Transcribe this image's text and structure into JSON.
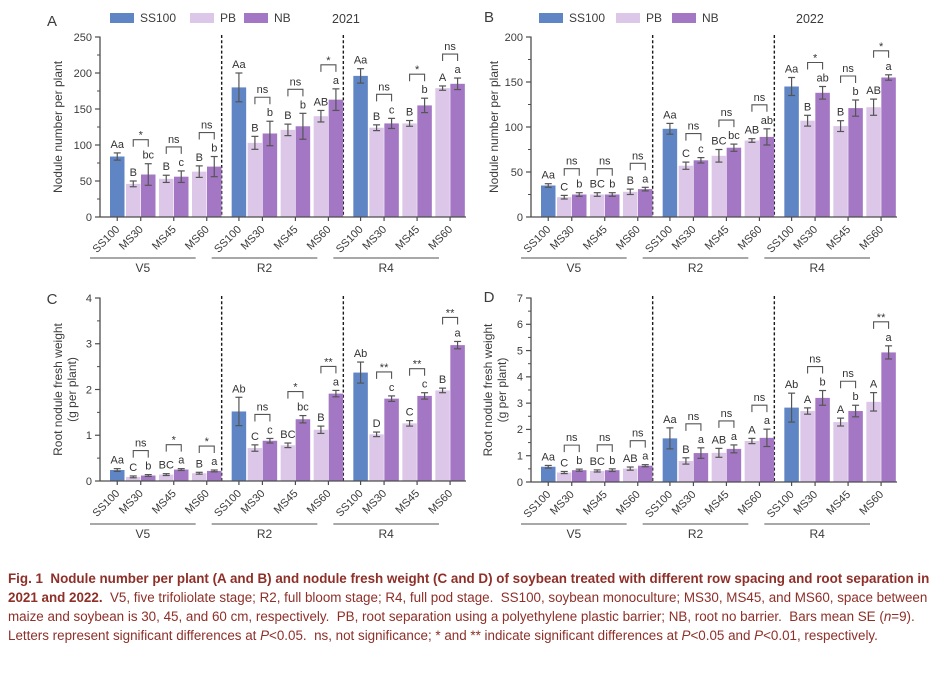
{
  "colors": {
    "ss100": "#5f85c5",
    "pb": "#dcc7e8",
    "nb": "#a377c3",
    "axis": "#4d4d4d",
    "error_bar": "#555555",
    "letter": "#333333",
    "text": "#3c3c3c",
    "group_line": "#8c8c8c",
    "separator": "#1a1a1a",
    "caption": "#8e2f28"
  },
  "legend": {
    "items": [
      {
        "label": "SS100",
        "color_key": "ss100"
      },
      {
        "label": "PB",
        "color_key": "pb"
      },
      {
        "label": "NB",
        "color_key": "nb"
      }
    ]
  },
  "chart_data": [
    {
      "type": "bar",
      "panel": "A",
      "panel_label": "A",
      "year": "2021",
      "ylabel": [
        "Nodule number per plant"
      ],
      "ylim": [
        0,
        250
      ],
      "ytick_step": 50,
      "yminor_step": 25,
      "x_categories": [
        "SS100",
        "MS30",
        "MS45",
        "MS60"
      ],
      "series_names": [
        "SS100",
        "PB",
        "NB"
      ],
      "show_legend": true,
      "groups": [
        {
          "name": "V5",
          "ss100": {
            "value": 84,
            "err": 5,
            "letter": "Aa"
          },
          "pairs": [
            {
              "cat": "MS30",
              "pb": {
                "value": 46,
                "err": 4,
                "letter": "B"
              },
              "nb": {
                "value": 59,
                "err": 15,
                "letter": "bc"
              },
              "sig": "*"
            },
            {
              "cat": "MS45",
              "pb": {
                "value": 53,
                "err": 5,
                "letter": "B"
              },
              "nb": {
                "value": 56,
                "err": 8,
                "letter": "c"
              },
              "sig": "ns"
            },
            {
              "cat": "MS60",
              "pb": {
                "value": 63,
                "err": 8,
                "letter": "B"
              },
              "nb": {
                "value": 70,
                "err": 14,
                "letter": "b"
              },
              "sig": "ns"
            }
          ]
        },
        {
          "name": "R2",
          "ss100": {
            "value": 180,
            "err": 20,
            "letter": "Aa"
          },
          "pairs": [
            {
              "cat": "MS30",
              "pb": {
                "value": 103,
                "err": 9,
                "letter": "B"
              },
              "nb": {
                "value": 116,
                "err": 17,
                "letter": "b"
              },
              "sig": "ns"
            },
            {
              "cat": "MS45",
              "pb": {
                "value": 121,
                "err": 8,
                "letter": "B"
              },
              "nb": {
                "value": 126,
                "err": 18,
                "letter": "b"
              },
              "sig": "ns"
            },
            {
              "cat": "MS60",
              "pb": {
                "value": 140,
                "err": 8,
                "letter": "AB"
              },
              "nb": {
                "value": 163,
                "err": 15,
                "letter": "a"
              },
              "sig": "*"
            }
          ]
        },
        {
          "name": "R4",
          "ss100": {
            "value": 196,
            "err": 10,
            "letter": "Aa"
          },
          "pairs": [
            {
              "cat": "MS30",
              "pb": {
                "value": 124,
                "err": 4,
                "letter": "B"
              },
              "nb": {
                "value": 130,
                "err": 7,
                "letter": "c"
              },
              "sig": "ns"
            },
            {
              "cat": "MS45",
              "pb": {
                "value": 130,
                "err": 4,
                "letter": "B"
              },
              "nb": {
                "value": 155,
                "err": 10,
                "letter": "b"
              },
              "sig": "*"
            },
            {
              "cat": "MS60",
              "pb": {
                "value": 179,
                "err": 3,
                "letter": "A"
              },
              "nb": {
                "value": 185,
                "err": 8,
                "letter": "a"
              },
              "sig": "ns"
            }
          ]
        }
      ]
    },
    {
      "type": "bar",
      "panel": "B",
      "panel_label": "B",
      "year": "2022",
      "ylabel": [
        "Nodule number per plant"
      ],
      "ylim": [
        0,
        200
      ],
      "ytick_step": 50,
      "yminor_step": 25,
      "x_categories": [
        "SS100",
        "MS30",
        "MS45",
        "MS60"
      ],
      "series_names": [
        "SS100",
        "PB",
        "NB"
      ],
      "show_legend": true,
      "groups": [
        {
          "name": "V5",
          "ss100": {
            "value": 35,
            "err": 2,
            "letter": "Aa"
          },
          "pairs": [
            {
              "cat": "MS30",
              "pb": {
                "value": 22,
                "err": 2,
                "letter": "C"
              },
              "nb": {
                "value": 25,
                "err": 2,
                "letter": "b"
              },
              "sig": "ns"
            },
            {
              "cat": "MS45",
              "pb": {
                "value": 25,
                "err": 2,
                "letter": "BC"
              },
              "nb": {
                "value": 25,
                "err": 2,
                "letter": "b"
              },
              "sig": "ns"
            },
            {
              "cat": "MS60",
              "pb": {
                "value": 28,
                "err": 3,
                "letter": "B"
              },
              "nb": {
                "value": 31,
                "err": 2,
                "letter": "a"
              },
              "sig": "ns"
            }
          ]
        },
        {
          "name": "R2",
          "ss100": {
            "value": 98,
            "err": 6,
            "letter": "Aa"
          },
          "pairs": [
            {
              "cat": "MS30",
              "pb": {
                "value": 57,
                "err": 4,
                "letter": "C"
              },
              "nb": {
                "value": 63,
                "err": 3,
                "letter": "c"
              },
              "sig": "ns"
            },
            {
              "cat": "MS45",
              "pb": {
                "value": 68,
                "err": 7,
                "letter": "BC"
              },
              "nb": {
                "value": 77,
                "err": 4,
                "letter": "bc"
              },
              "sig": "ns"
            },
            {
              "cat": "MS60",
              "pb": {
                "value": 85,
                "err": 2,
                "letter": "AB"
              },
              "nb": {
                "value": 89,
                "err": 9,
                "letter": "ab"
              },
              "sig": "ns"
            }
          ]
        },
        {
          "name": "R4",
          "ss100": {
            "value": 145,
            "err": 10,
            "letter": "Aa"
          },
          "pairs": [
            {
              "cat": "MS30",
              "pb": {
                "value": 107,
                "err": 6,
                "letter": "B"
              },
              "nb": {
                "value": 138,
                "err": 7,
                "letter": "ab"
              },
              "sig": "*"
            },
            {
              "cat": "MS45",
              "pb": {
                "value": 101,
                "err": 6,
                "letter": "B"
              },
              "nb": {
                "value": 121,
                "err": 9,
                "letter": "b"
              },
              "sig": "ns"
            },
            {
              "cat": "MS60",
              "pb": {
                "value": 122,
                "err": 9,
                "letter": "AB"
              },
              "nb": {
                "value": 155,
                "err": 3,
                "letter": "a"
              },
              "sig": "*"
            }
          ]
        }
      ]
    },
    {
      "type": "bar",
      "panel": "C",
      "panel_label": "C",
      "year": "",
      "ylabel": [
        "Root nodule fresh weight",
        "(g per plant)"
      ],
      "ylim": [
        0,
        4
      ],
      "ytick_step": 1,
      "yminor_step": 0.5,
      "x_categories": [
        "SS100",
        "MS30",
        "MS45",
        "MS60"
      ],
      "series_names": [
        "SS100",
        "PB",
        "NB"
      ],
      "show_legend": false,
      "groups": [
        {
          "name": "V5",
          "ss100": {
            "value": 0.24,
            "err": 0.03,
            "letter": "Aa"
          },
          "pairs": [
            {
              "cat": "MS30",
              "pb": {
                "value": 0.09,
                "err": 0.02,
                "letter": "C"
              },
              "nb": {
                "value": 0.12,
                "err": 0.02,
                "letter": "b"
              },
              "sig": "ns"
            },
            {
              "cat": "MS45",
              "pb": {
                "value": 0.14,
                "err": 0.02,
                "letter": "BC"
              },
              "nb": {
                "value": 0.25,
                "err": 0.02,
                "letter": "a"
              },
              "sig": "*"
            },
            {
              "cat": "MS60",
              "pb": {
                "value": 0.17,
                "err": 0.02,
                "letter": "B"
              },
              "nb": {
                "value": 0.22,
                "err": 0.02,
                "letter": "a"
              },
              "sig": "*"
            }
          ]
        },
        {
          "name": "R2",
          "ss100": {
            "value": 1.52,
            "err": 0.31,
            "letter": "Ab"
          },
          "pairs": [
            {
              "cat": "MS30",
              "pb": {
                "value": 0.72,
                "err": 0.07,
                "letter": "C"
              },
              "nb": {
                "value": 0.88,
                "err": 0.05,
                "letter": "c"
              },
              "sig": "ns"
            },
            {
              "cat": "MS45",
              "pb": {
                "value": 0.78,
                "err": 0.05,
                "letter": "BC"
              },
              "nb": {
                "value": 1.35,
                "err": 0.08,
                "letter": "bc"
              },
              "sig": "*"
            },
            {
              "cat": "MS60",
              "pb": {
                "value": 1.12,
                "err": 0.08,
                "letter": "B"
              },
              "nb": {
                "value": 1.91,
                "err": 0.07,
                "letter": "a"
              },
              "sig": "**"
            }
          ]
        },
        {
          "name": "R4",
          "ss100": {
            "value": 2.37,
            "err": 0.23,
            "letter": "Ab"
          },
          "pairs": [
            {
              "cat": "MS30",
              "pb": {
                "value": 1.02,
                "err": 0.05,
                "letter": "D"
              },
              "nb": {
                "value": 1.8,
                "err": 0.06,
                "letter": "c"
              },
              "sig": "**"
            },
            {
              "cat": "MS45",
              "pb": {
                "value": 1.26,
                "err": 0.06,
                "letter": "C"
              },
              "nb": {
                "value": 1.86,
                "err": 0.07,
                "letter": "c"
              },
              "sig": "**"
            },
            {
              "cat": "MS60",
              "pb": {
                "value": 1.98,
                "err": 0.05,
                "letter": "B"
              },
              "nb": {
                "value": 2.97,
                "err": 0.08,
                "letter": "a"
              },
              "sig": "**"
            }
          ]
        }
      ]
    },
    {
      "type": "bar",
      "panel": "D",
      "panel_label": "D",
      "year": "",
      "ylabel": [
        "Root nodule fresh weight",
        "(g per plant)"
      ],
      "ylim": [
        0,
        7
      ],
      "ytick_step": 1,
      "yminor_step": 0.5,
      "x_categories": [
        "SS100",
        "MS30",
        "MS45",
        "MS60"
      ],
      "series_names": [
        "SS100",
        "PB",
        "NB"
      ],
      "show_legend": false,
      "groups": [
        {
          "name": "V5",
          "ss100": {
            "value": 0.58,
            "err": 0.05,
            "letter": "Aa"
          },
          "pairs": [
            {
              "cat": "MS30",
              "pb": {
                "value": 0.36,
                "err": 0.04,
                "letter": "C"
              },
              "nb": {
                "value": 0.45,
                "err": 0.04,
                "letter": "b"
              },
              "sig": "ns"
            },
            {
              "cat": "MS45",
              "pb": {
                "value": 0.42,
                "err": 0.04,
                "letter": "BC"
              },
              "nb": {
                "value": 0.45,
                "err": 0.05,
                "letter": "b"
              },
              "sig": "ns"
            },
            {
              "cat": "MS60",
              "pb": {
                "value": 0.51,
                "err": 0.06,
                "letter": "AB"
              },
              "nb": {
                "value": 0.62,
                "err": 0.04,
                "letter": "a"
              },
              "sig": "ns"
            }
          ]
        },
        {
          "name": "R2",
          "ss100": {
            "value": 1.66,
            "err": 0.4,
            "letter": "Aa"
          },
          "pairs": [
            {
              "cat": "MS30",
              "pb": {
                "value": 0.8,
                "err": 0.12,
                "letter": "B"
              },
              "nb": {
                "value": 1.1,
                "err": 0.2,
                "letter": "a"
              },
              "sig": "ns"
            },
            {
              "cat": "MS45",
              "pb": {
                "value": 1.11,
                "err": 0.17,
                "letter": "AB"
              },
              "nb": {
                "value": 1.26,
                "err": 0.15,
                "letter": "a"
              },
              "sig": "ns"
            },
            {
              "cat": "MS60",
              "pb": {
                "value": 1.56,
                "err": 0.1,
                "letter": "A"
              },
              "nb": {
                "value": 1.68,
                "err": 0.33,
                "letter": "a"
              },
              "sig": "ns"
            }
          ]
        },
        {
          "name": "R4",
          "ss100": {
            "value": 2.83,
            "err": 0.55,
            "letter": "Ab"
          },
          "pairs": [
            {
              "cat": "MS30",
              "pb": {
                "value": 2.7,
                "err": 0.12,
                "letter": "A"
              },
              "nb": {
                "value": 3.2,
                "err": 0.28,
                "letter": "b"
              },
              "sig": "ns"
            },
            {
              "cat": "MS45",
              "pb": {
                "value": 2.28,
                "err": 0.15,
                "letter": "A"
              },
              "nb": {
                "value": 2.7,
                "err": 0.22,
                "letter": "b"
              },
              "sig": "ns"
            },
            {
              "cat": "MS60",
              "pb": {
                "value": 3.05,
                "err": 0.35,
                "letter": "A"
              },
              "nb": {
                "value": 4.93,
                "err": 0.25,
                "letter": "a"
              },
              "sig": "**"
            }
          ]
        }
      ]
    }
  ],
  "caption": {
    "segments": [
      {
        "text": "Fig. 1  Nodule number per plant (A and B) and nodule fresh weight (C and D) of soybean treated with different row spacing and root separation in 2021 and 2022.",
        "bold": true,
        "italic": false
      },
      {
        "text": "  V5, five trifoliolate stage; R2, full bloom stage; R4, full pod stage.  SS100, soybean monoculture; MS30, MS45, and MS60, space between maize and soybean is 30, 45, and 60 cm, respectively.  PB, root separation using a polyethylene plastic barrier; NB, root no barrier.  Bars mean SE (",
        "bold": false,
        "italic": false
      },
      {
        "text": "n",
        "bold": false,
        "italic": true
      },
      {
        "text": "=9).  Letters represent significant differences at ",
        "bold": false,
        "italic": false
      },
      {
        "text": "P",
        "bold": false,
        "italic": true
      },
      {
        "text": "<0.05.  ns, not significance; * and ** indicate significant differences at ",
        "bold": false,
        "italic": false
      },
      {
        "text": "P",
        "bold": false,
        "italic": true
      },
      {
        "text": "<0.05 and ",
        "bold": false,
        "italic": false
      },
      {
        "text": "P",
        "bold": false,
        "italic": true
      },
      {
        "text": "<0.01, respectively.",
        "bold": false,
        "italic": false
      }
    ]
  }
}
